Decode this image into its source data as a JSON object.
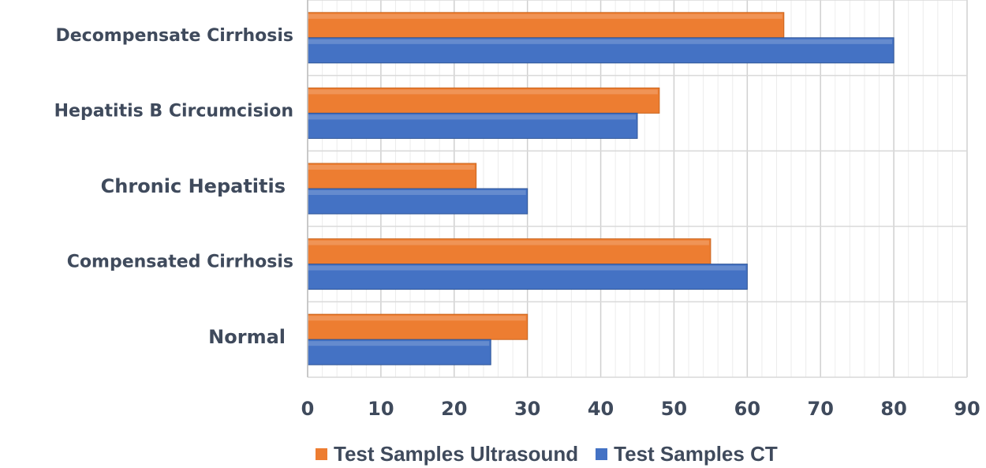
{
  "chart_data": {
    "type": "bar",
    "orientation": "horizontal",
    "categories": [
      "Decompensate Cirrhosis",
      "Hepatitis B Circumcision",
      "Chronic Hepatitis",
      "Compensated Cirrhosis",
      "Normal"
    ],
    "series": [
      {
        "name": "Test Samples Ultrasound",
        "color": "#ed7d31",
        "values": [
          65,
          48,
          23,
          55,
          30
        ]
      },
      {
        "name": "Test Samples CT",
        "color": "#4472c4",
        "values": [
          80,
          45,
          30,
          60,
          25
        ]
      }
    ],
    "xlim": [
      0,
      90
    ],
    "xticks": [
      "0",
      "10",
      "20",
      "30",
      "40",
      "50",
      "60",
      "70",
      "80",
      "90"
    ],
    "grid": true,
    "legend_position": "bottom",
    "title": "",
    "xlabel": "",
    "ylabel": ""
  }
}
